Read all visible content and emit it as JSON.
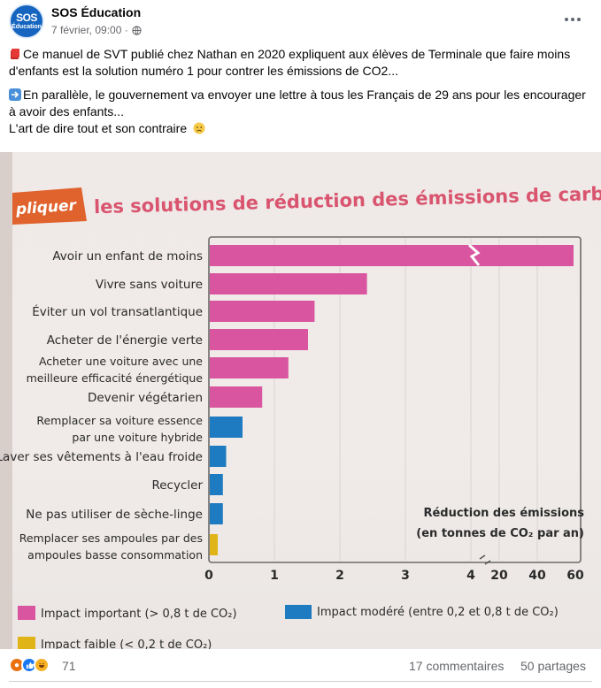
{
  "post": {
    "page_name": "SOS Éducation",
    "avatar_text_1": "SOS",
    "avatar_text_2": "Éducation",
    "timestamp": "7 février, 09:00 ·",
    "paragraph1": "Ce manuel de SVT publié chez Nathan en 2020 expliquent aux élèves de Terminale que faire moins d'enfants est la solution numéro 1 pour contrer les émissions de CO2...",
    "paragraph2": "En parallèle, le gouvernement va envoyer une lettre à tous les Français de 29 ans pour les encourager à avoir des enfants...",
    "paragraph3": "L'art de dire tout et son contraire"
  },
  "photo": {
    "badge": "pliquer",
    "heading": "les solutions de réduction des émissions de carbo",
    "axis_title_1": "Réduction des émissions",
    "axis_title_2": "(en tonnes de CO₂ par an)",
    "legend_high": "Impact important (> 0,8 t de CO₂)",
    "legend_mid": "Impact modéré (entre 0,2 et 0,8 t de CO₂)",
    "legend_low": "Impact faible (< 0,2 t de CO₂)",
    "colors": {
      "high": "#d9559f",
      "mid": "#1f7bc1",
      "low": "#e0b417",
      "badge": "#e0622c"
    }
  },
  "chart_data": {
    "type": "bar",
    "orientation": "horizontal",
    "categories": [
      "Avoir un enfant de moins",
      "Vivre sans voiture",
      "Éviter un vol transatlantique",
      "Acheter de l'énergie verte",
      "Acheter une voiture avec une meilleure efficacité énergétique",
      "Devenir végétarien",
      "Remplacer sa voiture essence par une voiture hybride",
      "Laver ses vêtements à l'eau froide",
      "Recycler",
      "Ne pas utiliser de sèche-linge",
      "Remplacer ses ampoules par des ampoules basse consommation"
    ],
    "label_lines": [
      [
        "Avoir un enfant de moins"
      ],
      [
        "Vivre sans voiture"
      ],
      [
        "Éviter un vol transatlantique"
      ],
      [
        "Acheter de l'énergie verte"
      ],
      [
        "Acheter une voiture avec une",
        "meilleure efficacité énergétique"
      ],
      [
        "Devenir végétarien"
      ],
      [
        "Remplacer sa voiture essence",
        "par une voiture hybride"
      ],
      [
        "Laver ses vêtements à l'eau froide"
      ],
      [
        "Recycler"
      ],
      [
        "Ne pas utiliser de sèche-linge"
      ],
      [
        "Remplacer ses ampoules par des",
        "ampoules basse consommation"
      ]
    ],
    "values": [
      58.6,
      2.4,
      1.6,
      1.5,
      1.2,
      0.8,
      0.5,
      0.25,
      0.2,
      0.2,
      0.1
    ],
    "impact": [
      "high",
      "high",
      "high",
      "high",
      "high",
      "high",
      "mid",
      "mid",
      "mid",
      "mid",
      "low"
    ],
    "x_ticks": [
      "0",
      "1",
      "2",
      "3",
      "4",
      "20",
      "40",
      "60"
    ],
    "xlabel": "Réduction des émissions (en tonnes de CO₂ par an)",
    "axis_break_at": 4
  },
  "reactions": {
    "count": "71",
    "comments": "17 commentaires",
    "shares": "50 partages"
  }
}
